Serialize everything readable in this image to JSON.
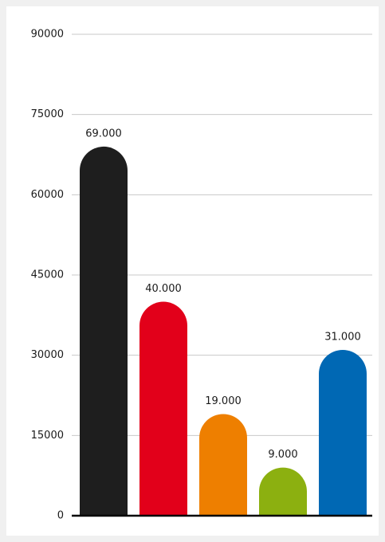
{
  "chart_data": {
    "type": "bar",
    "categories": [
      null,
      null,
      null,
      null,
      null
    ],
    "values": [
      69000,
      40000,
      19000,
      9000,
      31000
    ],
    "value_labels": [
      "69.000",
      "40.000",
      "19.000",
      "9.000",
      "31.000"
    ],
    "colors": [
      "#1e1e1e",
      "#e2001a",
      "#ee7f00",
      "#8cb010",
      "#0068b4"
    ],
    "ylim": [
      0,
      90000
    ],
    "yticks": [
      0,
      15000,
      30000,
      45000,
      60000,
      75000,
      90000
    ],
    "grid": true
  }
}
